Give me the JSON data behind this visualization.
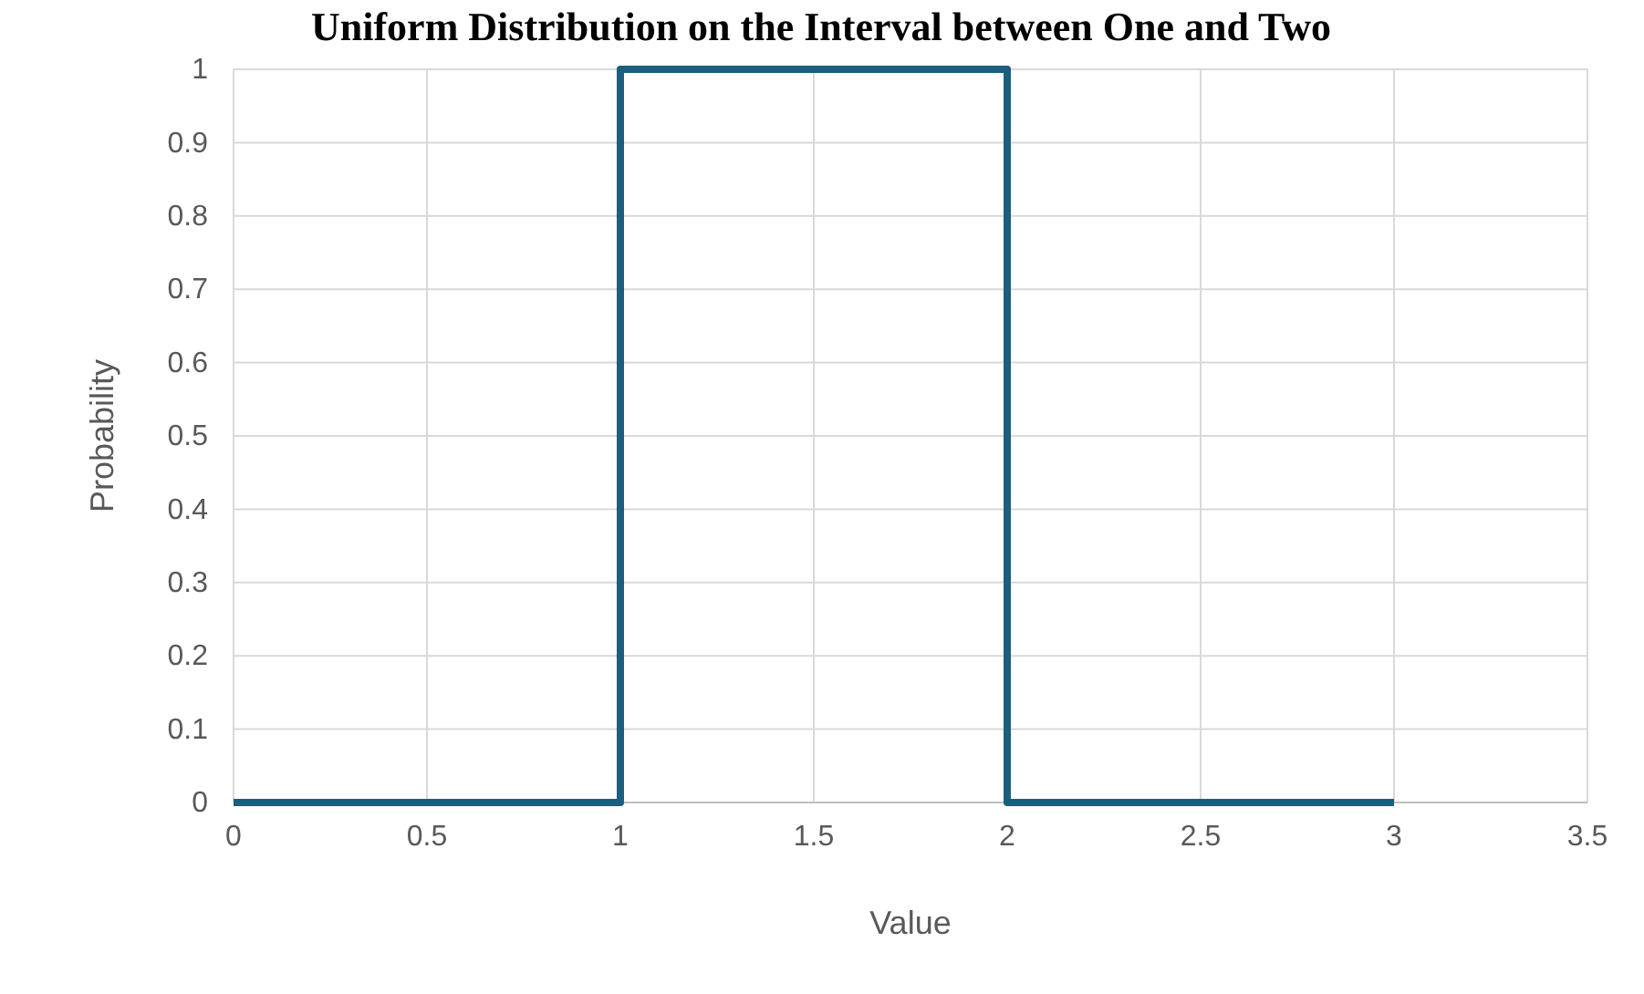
{
  "chart_data": {
    "type": "line",
    "title": "Uniform Distribution on the Interval between One and Two",
    "xlabel": "Value",
    "ylabel": "Probability",
    "x": [
      0,
      1,
      1,
      2,
      2,
      3
    ],
    "series": [
      {
        "color": "#1b5e7e",
        "values": [
          0,
          0,
          1,
          1,
          0,
          0
        ]
      }
    ],
    "xlim": [
      0,
      3.5
    ],
    "xticks": [
      0,
      0.5,
      1,
      1.5,
      2,
      2.5,
      3,
      3.5
    ],
    "ylim": [
      0,
      1
    ],
    "yticks": [
      0,
      0.1,
      0.2,
      0.3,
      0.4,
      0.5,
      0.6,
      0.7,
      0.8,
      0.9,
      1
    ],
    "grid": true,
    "marker": "none",
    "line_style": "solid"
  }
}
